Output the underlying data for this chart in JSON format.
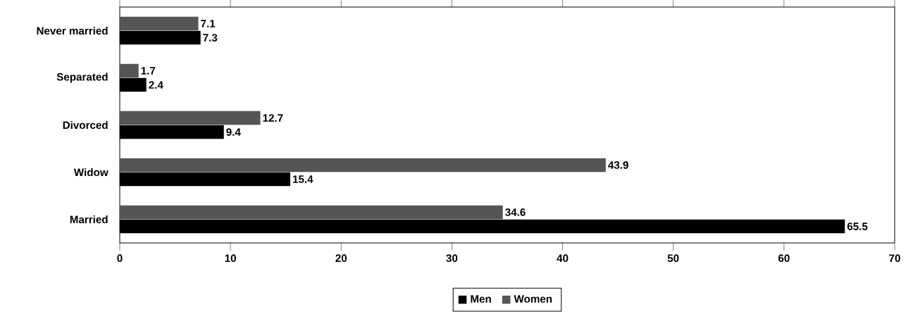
{
  "chart_data": {
    "type": "bar",
    "orientation": "horizontal",
    "categories": [
      "Never married",
      "Separated",
      "Divorced",
      "Widow",
      "Married"
    ],
    "series": [
      {
        "name": "Men",
        "color": "#000000",
        "values": [
          7.3,
          2.4,
          9.4,
          15.4,
          65.5
        ]
      },
      {
        "name": "Women",
        "color": "#555555",
        "values": [
          7.1,
          1.7,
          12.7,
          43.9,
          34.6
        ]
      }
    ],
    "xlim": [
      0,
      70
    ],
    "xticks": [
      0,
      10,
      20,
      30,
      40,
      50,
      60,
      70
    ],
    "data_labels": true,
    "legend": "bottom",
    "grid": false
  }
}
